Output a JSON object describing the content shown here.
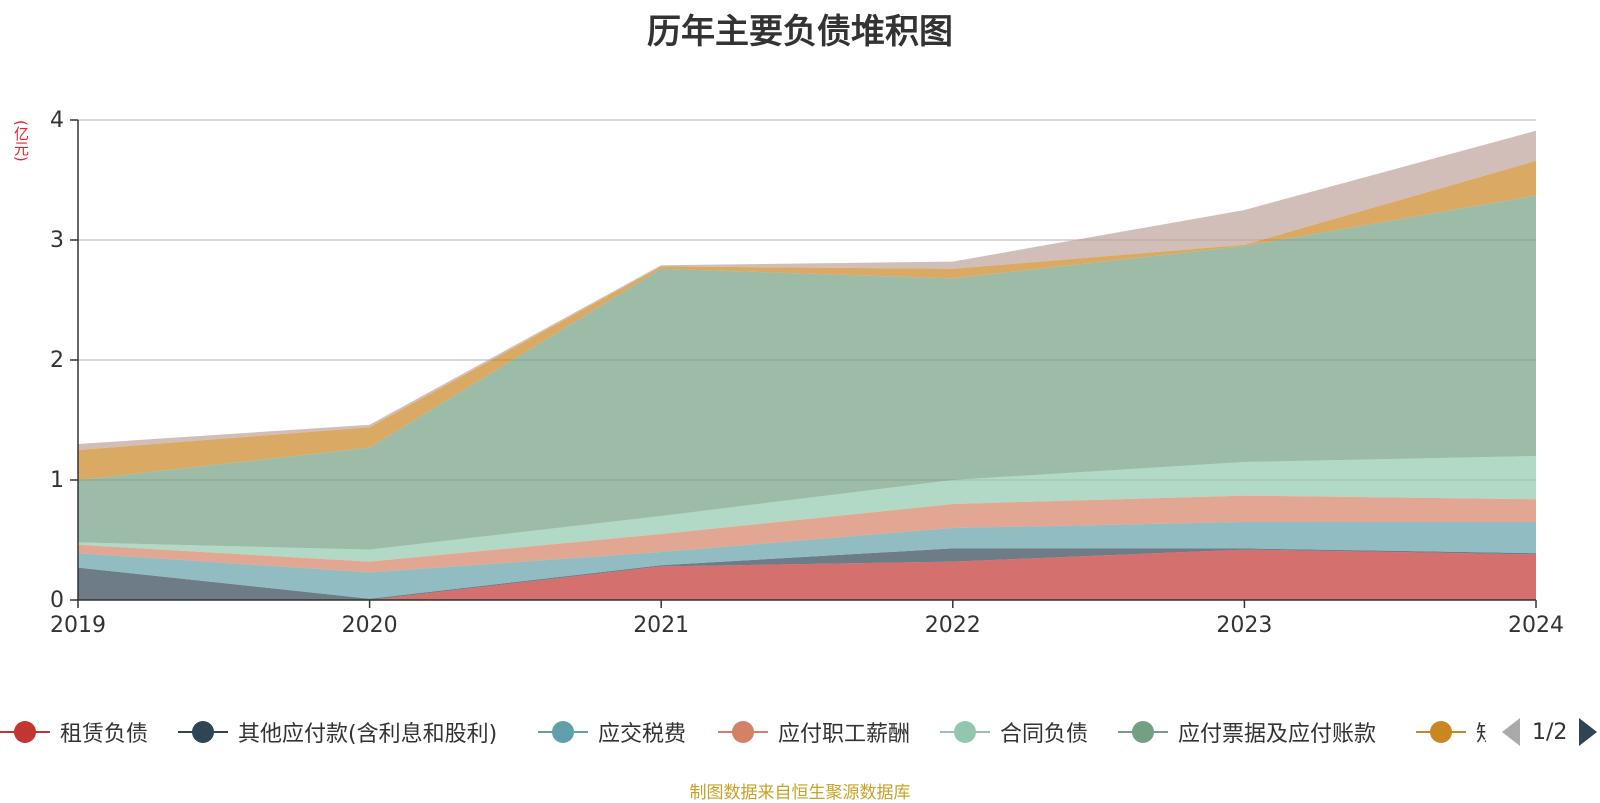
{
  "chart_data": {
    "type": "area",
    "stacked": true,
    "title": "历年主要负债堆积图",
    "unit_label": "(亿元)",
    "categories": [
      "2019",
      "2020",
      "2021",
      "2022",
      "2023",
      "2024"
    ],
    "yticks": [
      "0",
      "1",
      "2",
      "3",
      "4"
    ],
    "ylim": [
      0,
      4
    ],
    "grid": true,
    "legend_position": "bottom",
    "series": [
      {
        "name": "租赁负债",
        "color": "#c23531",
        "values": [
          0.0,
          0.0,
          0.28,
          0.32,
          0.42,
          0.38
        ]
      },
      {
        "name": "其他应付款(含利息和股利)",
        "color": "#2f4554",
        "values": [
          0.27,
          0.01,
          0.01,
          0.11,
          0.01,
          0.01
        ]
      },
      {
        "name": "应交税费",
        "color": "#61a0a8",
        "values": [
          0.12,
          0.22,
          0.11,
          0.17,
          0.22,
          0.26
        ]
      },
      {
        "name": "应付职工薪酬",
        "color": "#d48265",
        "values": [
          0.07,
          0.09,
          0.15,
          0.2,
          0.22,
          0.19
        ]
      },
      {
        "name": "合同负债",
        "color": "#91c7ae",
        "values": [
          0.02,
          0.1,
          0.15,
          0.2,
          0.28,
          0.36
        ]
      },
      {
        "name": "应付票据及应付账款",
        "color": "#749f83",
        "values": [
          0.52,
          0.85,
          2.06,
          1.68,
          1.8,
          2.17
        ]
      },
      {
        "name": "短期借款",
        "color": "#ca8622",
        "values": [
          0.25,
          0.17,
          0.02,
          0.08,
          0.01,
          0.29
        ]
      },
      {
        "name": "",
        "color": "#bda29a",
        "values": [
          0.05,
          0.02,
          0.01,
          0.06,
          0.29,
          0.25
        ]
      }
    ]
  },
  "legend": {
    "last_visible_fragment": "短",
    "page_indicator": "1/2"
  },
  "footer": {
    "source_note": "制图数据来自恒生聚源数据库"
  }
}
